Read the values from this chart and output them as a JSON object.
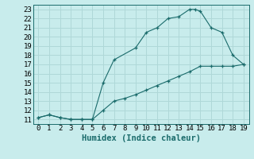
{
  "xlabel": "Humidex (Indice chaleur)",
  "bg_color": "#c8ecec",
  "grid_color": "#afd8d8",
  "line_color": "#1a6b6b",
  "marker": "+",
  "upper_x": [
    0,
    1,
    2,
    3,
    4,
    5,
    6,
    7,
    9,
    10,
    11,
    12,
    13,
    14,
    14.5,
    15,
    16,
    17,
    18,
    19
  ],
  "upper_y": [
    11.2,
    11.5,
    11.2,
    11.0,
    11.0,
    11.0,
    15.0,
    17.5,
    18.8,
    20.5,
    21.0,
    22.0,
    22.2,
    23.0,
    23.0,
    22.8,
    21.0,
    20.5,
    18.0,
    17.0
  ],
  "lower_x": [
    0,
    1,
    2,
    3,
    4,
    5,
    6,
    7,
    8,
    9,
    10,
    11,
    12,
    13,
    14,
    15,
    16,
    17,
    18,
    19
  ],
  "lower_y": [
    11.2,
    11.5,
    11.2,
    11.0,
    11.0,
    11.0,
    12.0,
    13.0,
    13.3,
    13.7,
    14.2,
    14.7,
    15.2,
    15.7,
    16.2,
    16.8,
    16.8,
    16.8,
    16.8,
    17.0
  ],
  "xlim": [
    -0.5,
    19.5
  ],
  "ylim": [
    10.5,
    23.5
  ],
  "xticks": [
    0,
    1,
    2,
    3,
    4,
    5,
    6,
    7,
    8,
    9,
    10,
    11,
    12,
    13,
    14,
    15,
    16,
    17,
    18,
    19
  ],
  "yticks": [
    11,
    12,
    13,
    14,
    15,
    16,
    17,
    18,
    19,
    20,
    21,
    22,
    23
  ],
  "tick_fontsize": 6.5,
  "label_fontsize": 7.5
}
